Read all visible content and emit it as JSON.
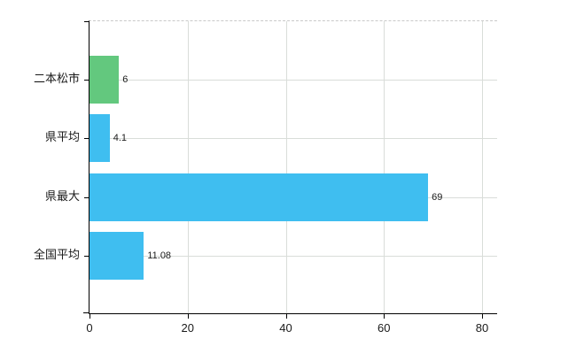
{
  "chart_data": {
    "type": "bar",
    "orientation": "horizontal",
    "title": "",
    "categories": [
      "二本松市",
      "県平均",
      "県最大",
      "全国平均"
    ],
    "values": [
      6,
      4.1,
      69,
      11.08
    ],
    "value_labels": [
      "6",
      "4.1",
      "69",
      "11.08"
    ],
    "bar_colors": [
      "#63C87E",
      "#3FBEF0",
      "#3FBEF0",
      "#3FBEF0"
    ],
    "x_ticks": [
      0,
      20,
      40,
      60,
      80
    ],
    "x_tick_labels": [
      "0",
      "20",
      "40",
      "60",
      "80"
    ],
    "xlim": [
      0,
      83
    ],
    "grid": true,
    "legend": "none",
    "gridline_color": "#d9ddd9",
    "plot_border_top_style": "dashed",
    "axis_color": "#000000",
    "background_color": "#ffffff"
  }
}
